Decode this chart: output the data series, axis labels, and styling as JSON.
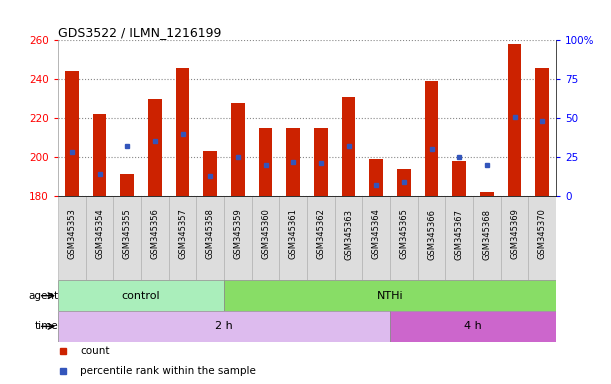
{
  "title": "GDS3522 / ILMN_1216199",
  "samples": [
    "GSM345353",
    "GSM345354",
    "GSM345355",
    "GSM345356",
    "GSM345357",
    "GSM345358",
    "GSM345359",
    "GSM345360",
    "GSM345361",
    "GSM345362",
    "GSM345363",
    "GSM345364",
    "GSM345365",
    "GSM345366",
    "GSM345367",
    "GSM345368",
    "GSM345369",
    "GSM345370"
  ],
  "bar_values": [
    244,
    222,
    191,
    230,
    246,
    203,
    228,
    215,
    215,
    215,
    231,
    199,
    194,
    239,
    198,
    182,
    258,
    246
  ],
  "blue_pct_values": [
    28,
    14,
    32,
    35,
    40,
    13,
    25,
    20,
    22,
    21,
    32,
    7,
    9,
    30,
    25,
    20,
    51,
    48
  ],
  "ylim_left": [
    180,
    260
  ],
  "yticks_left": [
    180,
    200,
    220,
    240,
    260
  ],
  "ylim_right": [
    0,
    100
  ],
  "yticks_right": [
    0,
    25,
    50,
    75,
    100
  ],
  "yright_labels": [
    "0",
    "25",
    "50",
    "75",
    "100%"
  ],
  "bar_color": "#cc2200",
  "dot_color": "#3355bb",
  "bar_bottom": 180,
  "agent_groups": [
    {
      "label": "control",
      "start": 0,
      "end": 6,
      "color": "#aaeebb"
    },
    {
      "label": "NTHi",
      "start": 6,
      "end": 18,
      "color": "#88dd66"
    }
  ],
  "time_groups": [
    {
      "label": "2 h",
      "start": 0,
      "end": 12,
      "color": "#ddbbee"
    },
    {
      "label": "4 h",
      "start": 12,
      "end": 18,
      "color": "#cc66cc"
    }
  ],
  "agent_label": "agent",
  "time_label": "time",
  "legend_count": "count",
  "legend_pct": "percentile rank within the sample",
  "tick_label_bg": "#dddddd",
  "bar_width": 0.5
}
